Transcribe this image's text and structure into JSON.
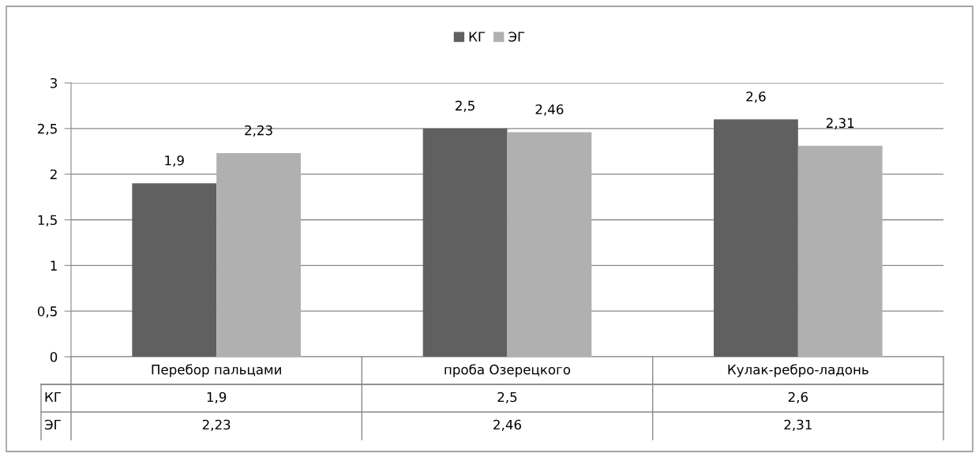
{
  "chart_data": {
    "type": "bar",
    "categories": [
      "Перебор пальцами",
      "проба Озерецкого",
      "Кулак-ребро-ладонь"
    ],
    "series": [
      {
        "name": "КГ",
        "color": "#606060",
        "values": [
          1.9,
          2.5,
          2.6
        ],
        "value_labels": [
          "1,9",
          "2,5",
          "2,6"
        ]
      },
      {
        "name": "ЭГ",
        "color": "#b0b0b0",
        "values": [
          2.23,
          2.46,
          2.31
        ],
        "value_labels": [
          "2,23",
          "2,46",
          "2,31"
        ]
      }
    ],
    "ylim": [
      0,
      3
    ],
    "yticks": [
      0,
      {
        "value": 0.5,
        "label": "0,5"
      },
      1,
      {
        "value": 1.5,
        "label": "1,5"
      },
      2,
      {
        "value": 2.5,
        "label": "2,5"
      },
      3
    ],
    "grid": "y",
    "legend": "top"
  }
}
